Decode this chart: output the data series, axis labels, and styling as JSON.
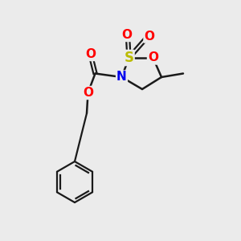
{
  "bg_color": "#ebebeb",
  "bond_color": "#1a1a1a",
  "atom_colors": {
    "O": "#ff0000",
    "S": "#bbbb00",
    "N": "#0000ee",
    "C": "#000000"
  },
  "figsize": [
    3.0,
    3.0
  ],
  "dpi": 100
}
